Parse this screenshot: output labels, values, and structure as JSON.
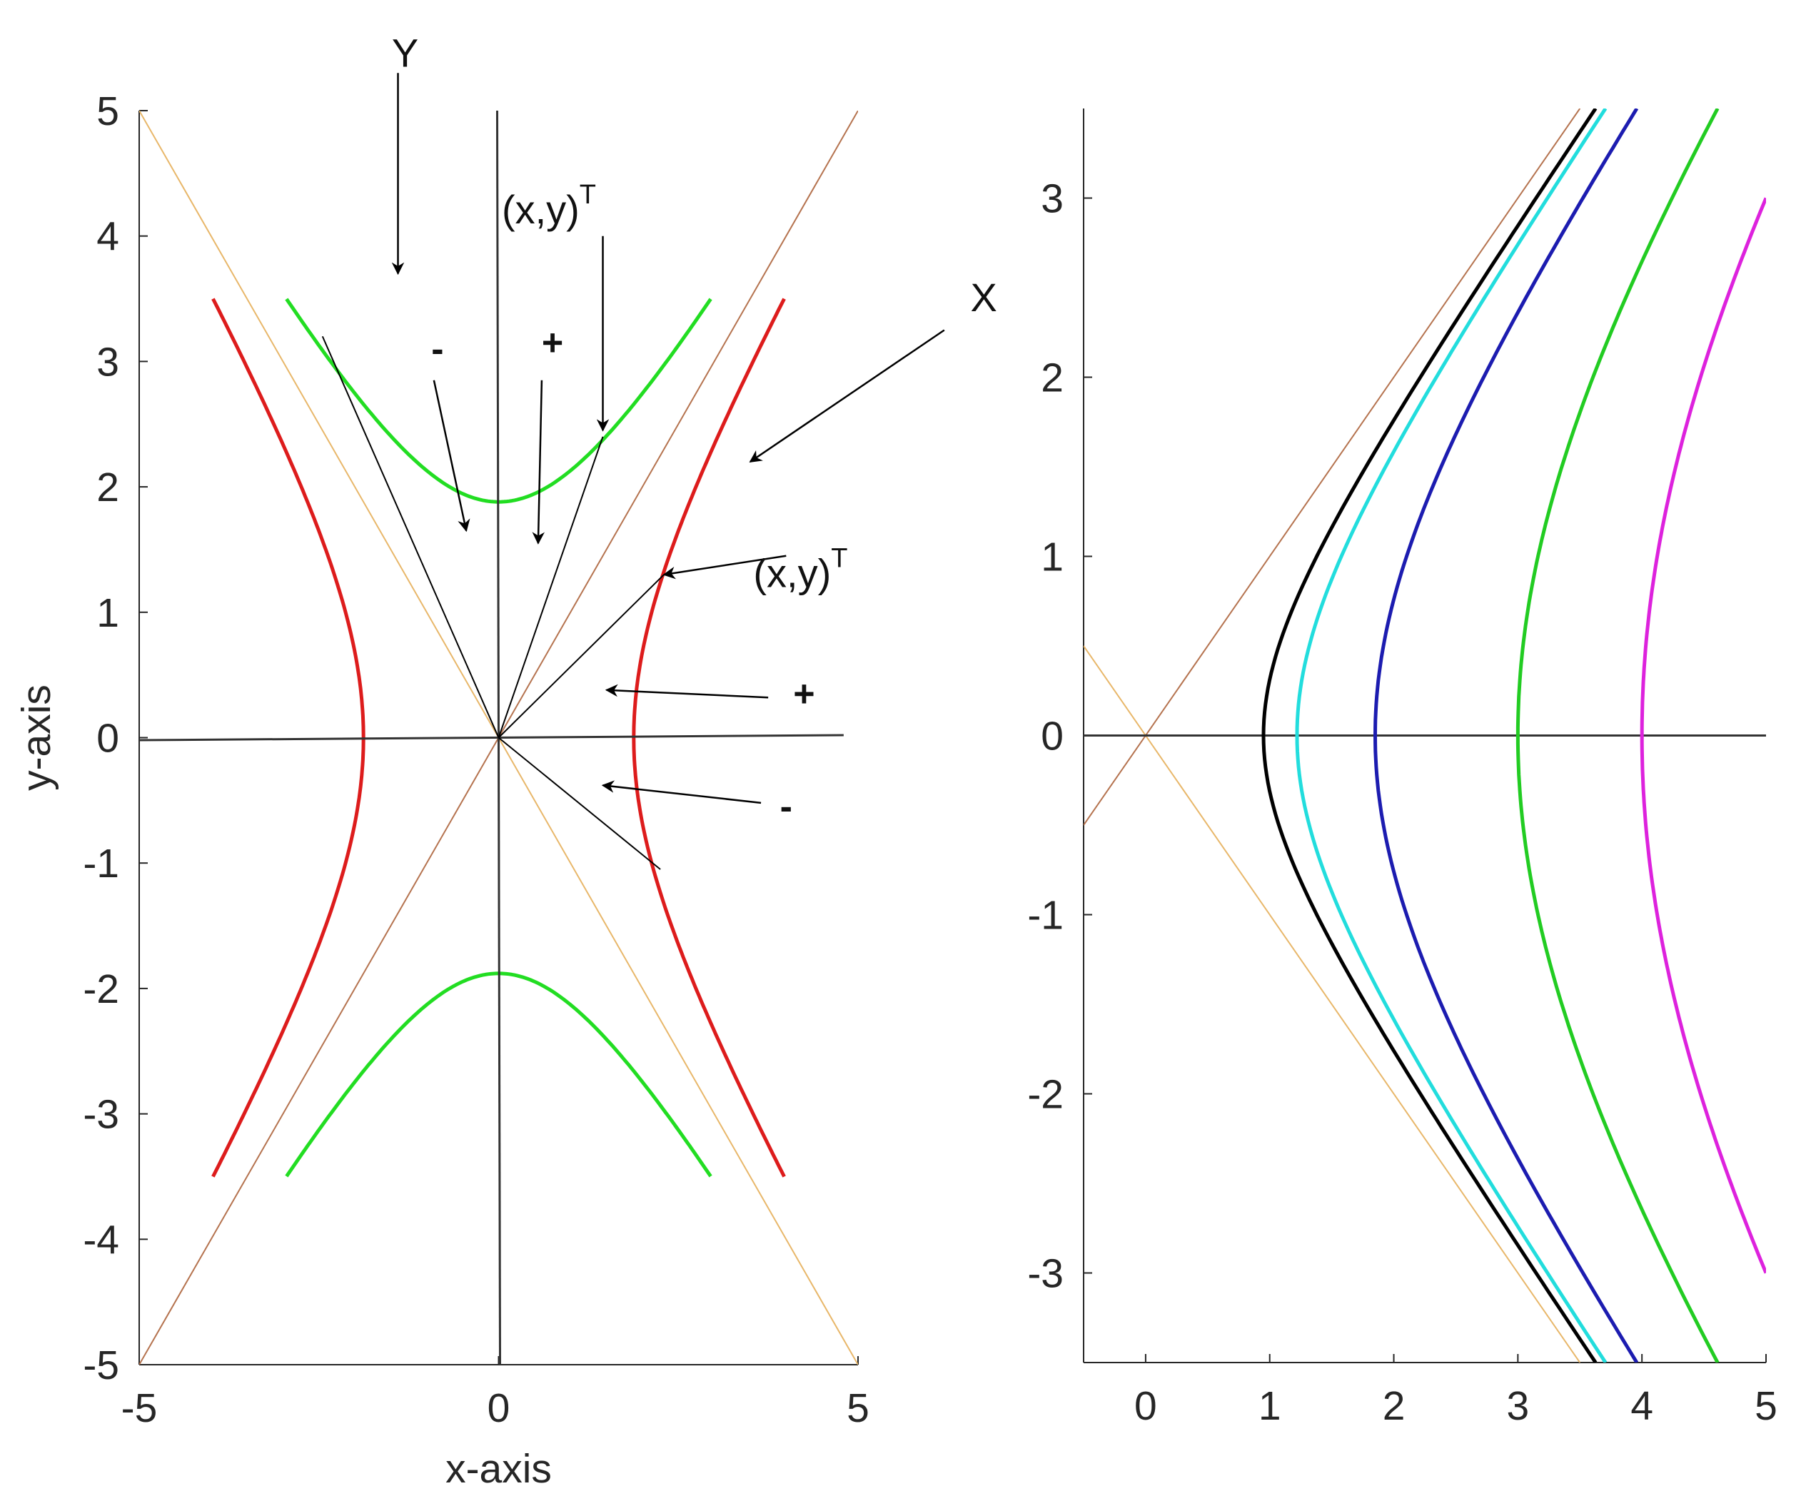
{
  "colors": {
    "red": "#dd1c1c",
    "green": "#22dd22",
    "black": "#000000",
    "cyan": "#22dddd",
    "blue": "#1c1cb0",
    "green2": "#22cc22",
    "magenta": "#dd22dd",
    "asym_pos": "#b5734f",
    "asym_neg": "#e8b76a",
    "axis_line": "#333333",
    "annot": "#000000"
  },
  "chart_data": [
    {
      "type": "line",
      "title": "",
      "xlabel": "x-axis",
      "ylabel": "y-axis",
      "xlim": [
        -5,
        5
      ],
      "ylim": [
        -5,
        5
      ],
      "xticks": [
        -5,
        0,
        5
      ],
      "yticks": [
        5,
        4,
        3,
        2,
        1,
        0,
        -1,
        -2,
        -3,
        -4,
        -5
      ],
      "xtick_labels": [
        "-5",
        "0",
        "5"
      ],
      "ytick_labels": [
        "5",
        "4",
        "3",
        "2",
        "1",
        "0",
        "-1",
        "-2",
        "-3",
        "-4",
        "-5"
      ],
      "grid": false,
      "series": [
        {
          "name": "hyperbola-red-right",
          "kind": "hyperbola_x",
          "a": 1.88,
          "sign": 1,
          "y_range": [
            -3.5,
            3.5
          ],
          "color": "red"
        },
        {
          "name": "hyperbola-red-left",
          "kind": "hyperbola_x",
          "a": 1.88,
          "sign": -1,
          "y_range": [
            -3.5,
            3.5
          ],
          "color": "red"
        },
        {
          "name": "hyperbola-green-top",
          "kind": "hyperbola_y",
          "a": 1.88,
          "sign": 1,
          "x_range": [
            -2.95,
            2.95
          ],
          "color": "green"
        },
        {
          "name": "hyperbola-green-bottom",
          "kind": "hyperbola_y",
          "a": 1.88,
          "sign": -1,
          "x_range": [
            -2.95,
            2.95
          ],
          "color": "green"
        },
        {
          "name": "asymptote-positive",
          "kind": "segment",
          "x": [
            -5,
            5
          ],
          "y": [
            -5,
            5
          ],
          "color": "asym_pos"
        },
        {
          "name": "asymptote-negative",
          "kind": "segment",
          "x": [
            -5,
            5
          ],
          "y": [
            5,
            -5
          ],
          "color": "asym_neg"
        },
        {
          "name": "horizontal-axis-line",
          "kind": "segment",
          "x": [
            -5,
            4.8
          ],
          "y": [
            -0.02,
            0.02
          ],
          "color": "axis_line"
        },
        {
          "name": "vertical-axis-line",
          "kind": "segment",
          "x": [
            -0.02,
            0.02
          ],
          "y": [
            5,
            -5
          ],
          "color": "axis_line"
        },
        {
          "name": "ray-upper-left",
          "kind": "segment",
          "x": [
            0,
            -2.45
          ],
          "y": [
            0,
            3.2
          ],
          "color": "annot"
        },
        {
          "name": "ray-upper-right",
          "kind": "segment",
          "x": [
            0,
            1.45
          ],
          "y": [
            0,
            2.4
          ],
          "color": "annot"
        },
        {
          "name": "ray-right-point",
          "kind": "segment",
          "x": [
            0,
            2.3
          ],
          "y": [
            0,
            1.3
          ],
          "color": "annot"
        },
        {
          "name": "ray-lower-right",
          "kind": "segment",
          "x": [
            0,
            2.25
          ],
          "y": [
            0,
            -1.05
          ],
          "color": "annot"
        }
      ],
      "annotations": [
        {
          "name": "label-Y",
          "text": "Y",
          "x": -1.3,
          "y": 5.35
        },
        {
          "name": "label-X",
          "text": "X",
          "x": 6.75,
          "y": 3.4
        },
        {
          "name": "label-xy-top",
          "text": "(x,y)",
          "sup": "T",
          "x": 0.7,
          "y": 4.1
        },
        {
          "name": "label-xy-right",
          "text": "(x,y)",
          "sup": "T",
          "x": 4.2,
          "y": 1.2
        },
        {
          "name": "label-minus-top",
          "text": "-",
          "x": -0.85,
          "y": 3.0
        },
        {
          "name": "label-plus-top",
          "text": "+",
          "x": 0.75,
          "y": 3.05
        },
        {
          "name": "label-plus-right",
          "text": "+",
          "x": 4.25,
          "y": 0.25
        },
        {
          "name": "label-minus-right",
          "text": "-",
          "x": 4.0,
          "y": -0.65
        }
      ],
      "arrows": [
        {
          "name": "arrow-Y",
          "x1": -1.4,
          "y1": 5.3,
          "x2": -1.4,
          "y2": 3.7
        },
        {
          "name": "arrow-X",
          "x1": 6.2,
          "y1": 3.25,
          "x2": 3.5,
          "y2": 2.2
        },
        {
          "name": "arrow-xy-top",
          "x1": 1.45,
          "y1": 4.0,
          "x2": 1.45,
          "y2": 2.45
        },
        {
          "name": "arrow-xy-right",
          "x1": 4.0,
          "y1": 1.45,
          "x2": 2.3,
          "y2": 1.3
        },
        {
          "name": "arrow-minus-top",
          "x1": -0.9,
          "y1": 2.85,
          "x2": -0.45,
          "y2": 1.65
        },
        {
          "name": "arrow-plus-top",
          "x1": 0.6,
          "y1": 2.85,
          "x2": 0.55,
          "y2": 1.55
        },
        {
          "name": "arrow-plus-right",
          "x1": 3.75,
          "y1": 0.32,
          "x2": 1.5,
          "y2": 0.38
        },
        {
          "name": "arrow-minus-right",
          "x1": 3.65,
          "y1": -0.52,
          "x2": 1.45,
          "y2": -0.38
        }
      ]
    },
    {
      "type": "line",
      "title": "",
      "xlabel": "",
      "ylabel": "",
      "xlim": [
        -0.5,
        5
      ],
      "ylim": [
        -3.5,
        3.5
      ],
      "xticks": [
        0,
        1,
        2,
        3,
        4,
        5
      ],
      "yticks": [
        3,
        2,
        1,
        0,
        -1,
        -2,
        -3
      ],
      "xtick_labels": [
        "0",
        "1",
        "2",
        "3",
        "4",
        "5"
      ],
      "ytick_labels": [
        "3",
        "2",
        "1",
        "0",
        "-1",
        "-2",
        "-3"
      ],
      "grid": false,
      "series": [
        {
          "name": "asymptote-positive",
          "kind": "segment",
          "x": [
            -0.5,
            3.5
          ],
          "y": [
            -0.5,
            3.5
          ],
          "color": "asym_pos"
        },
        {
          "name": "asymptote-negative",
          "kind": "segment",
          "x": [
            -0.5,
            3.5
          ],
          "y": [
            0.5,
            -3.5
          ],
          "color": "asym_neg"
        },
        {
          "name": "horizontal-axis-line",
          "kind": "segment",
          "x": [
            -0.5,
            5
          ],
          "y": [
            0,
            0
          ],
          "color": "axis_line"
        },
        {
          "name": "hyperbola-black",
          "kind": "hyperbola_x",
          "a": 0.95,
          "sign": 1,
          "y_range": [
            -3.5,
            3.5
          ],
          "color": "black"
        },
        {
          "name": "hyperbola-cyan",
          "kind": "hyperbola_x",
          "a": 1.22,
          "sign": 1,
          "y_range": [
            -3.5,
            3.5
          ],
          "color": "cyan"
        },
        {
          "name": "hyperbola-blue",
          "kind": "hyperbola_x",
          "a": 1.85,
          "sign": 1,
          "y_range": [
            -3.5,
            3.5
          ],
          "color": "blue"
        },
        {
          "name": "hyperbola-green",
          "kind": "hyperbola_x",
          "a": 3.0,
          "sign": 1,
          "y_range": [
            -3.5,
            3.5
          ],
          "color": "green2"
        },
        {
          "name": "hyperbola-magenta",
          "kind": "hyperbola_x",
          "a": 4.0,
          "sign": 1,
          "y_range": [
            -3.0,
            3.0
          ],
          "color": "magenta"
        }
      ],
      "annotations": [],
      "arrows": []
    }
  ]
}
